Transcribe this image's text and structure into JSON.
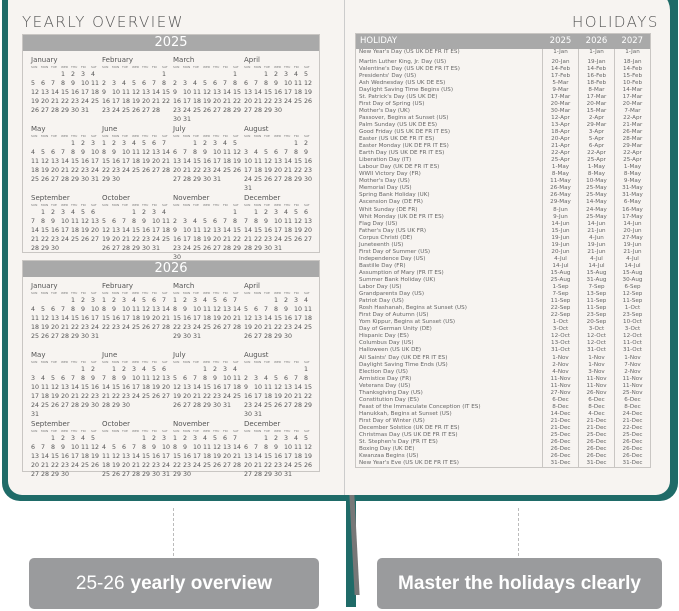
{
  "colors": {
    "cover": "#1f6b68",
    "bar": "#a9a9a9",
    "caption_bg": "#9a9b9d"
  },
  "left_page": {
    "title": "YEARLY OVERVIEW",
    "weekdays": [
      "SUN",
      "MON",
      "TUE",
      "WED",
      "THU",
      "FRI",
      "SAT"
    ],
    "months": [
      "January",
      "February",
      "March",
      "April",
      "May",
      "June",
      "July",
      "August",
      "September",
      "October",
      "November",
      "December"
    ],
    "years": [
      "2025",
      "2026"
    ]
  },
  "right_page": {
    "title": "HOLIDAYS",
    "headers": [
      "HOLIDAY",
      "2025",
      "2026",
      "2027"
    ],
    "rows": [
      [
        "New Year's Day (US UK DE FR IT ES)",
        "1-Jan",
        "1-Jan",
        "1-Jan"
      ],
      [
        "Martin Luther King, Jr. Day (US)",
        "20-Jan",
        "19-Jan",
        "18-Jan"
      ],
      [
        "Valentine's Day (US UK DE FR IT ES)",
        "14-Feb",
        "14-Feb",
        "14-Feb"
      ],
      [
        "Presidents' Day (US)",
        "17-Feb",
        "16-Feb",
        "15-Feb"
      ],
      [
        "Ash Wednesday (US UK DE ES)",
        "5-Mar",
        "18-Feb",
        "10-Feb"
      ],
      [
        "Daylight Saving Time Begins (US)",
        "9-Mar",
        "8-Mar",
        "14-Mar"
      ],
      [
        "St. Patrick's Day (US UK DE)",
        "17-Mar",
        "17-Mar",
        "17-Mar"
      ],
      [
        "First Day of Spring (US)",
        "20-Mar",
        "20-Mar",
        "20-Mar"
      ],
      [
        "Mother's Day (UK)",
        "30-Mar",
        "15-Mar",
        "7-Mar"
      ],
      [
        "Passover, Begins at Sunset (US)",
        "12-Apr",
        "2-Apr",
        "22-Apr"
      ],
      [
        "Palm Sunday (US UK DE ES)",
        "13-Apr",
        "29-Mar",
        "21-Mar"
      ],
      [
        "Good Friday (US UK DE FR IT ES)",
        "18-Apr",
        "3-Apr",
        "26-Mar"
      ],
      [
        "Easter (US UK DE FR IT ES)",
        "20-Apr",
        "5-Apr",
        "28-Mar"
      ],
      [
        "Easter Monday (UK DE FR IT ES)",
        "21-Apr",
        "6-Apr",
        "29-Mar"
      ],
      [
        "Earth Day (US UK DE FR IT ES)",
        "22-Apr",
        "22-Apr",
        "22-Apr"
      ],
      [
        "Liberation Day (IT)",
        "25-Apr",
        "25-Apr",
        "25-Apr"
      ],
      [
        "Labour Day (UK DE FR IT ES)",
        "1-May",
        "1-May",
        "1-May"
      ],
      [
        "WWII Victory Day (FR)",
        "8-May",
        "8-May",
        "8-May"
      ],
      [
        "Mother's Day (US)",
        "11-May",
        "10-May",
        "9-May"
      ],
      [
        "Memorial Day (US)",
        "26-May",
        "25-May",
        "31-May"
      ],
      [
        "Spring Bank Holiday (UK)",
        "26-May",
        "25-May",
        "31-May"
      ],
      [
        "Ascension Day (DE FR)",
        "29-May",
        "14-May",
        "6-May"
      ],
      [
        "Whit Sunday (DE FR)",
        "8-Jun",
        "24-May",
        "16-May"
      ],
      [
        "Whit Monday (UK DE FR IT ES)",
        "9-Jun",
        "25-May",
        "17-May"
      ],
      [
        "Flag Day (US)",
        "14-Jun",
        "14-Jun",
        "14-Jun"
      ],
      [
        "Father's Day (US UK FR)",
        "15-Jun",
        "21-Jun",
        "20-Jun"
      ],
      [
        "Corpus Christi (DE)",
        "19-Jun",
        "4-Jun",
        "27-May"
      ],
      [
        "Juneteenth (US)",
        "19-Jun",
        "19-Jun",
        "19-Jun"
      ],
      [
        "First Day of Summer (US)",
        "20-Jun",
        "21-Jun",
        "21-Jun"
      ],
      [
        "Independence Day (US)",
        "4-Jul",
        "4-Jul",
        "4-Jul"
      ],
      [
        "Bastille Day (FR)",
        "14-Jul",
        "14-Jul",
        "14-Jul"
      ],
      [
        "Assumption of Mary (FR IT ES)",
        "15-Aug",
        "15-Aug",
        "15-Aug"
      ],
      [
        "Summer Bank Holiday (UK)",
        "25-Aug",
        "31-Aug",
        "30-Aug"
      ],
      [
        "Labor Day (US)",
        "1-Sep",
        "7-Sep",
        "6-Sep"
      ],
      [
        "Grandparents Day (US)",
        "7-Sep",
        "13-Sep",
        "12-Sep"
      ],
      [
        "Patriot Day (US)",
        "11-Sep",
        "11-Sep",
        "11-Sep"
      ],
      [
        "Rosh Hashanah, Begins at Sunset (US)",
        "22-Sep",
        "11-Sep",
        "1-Oct"
      ],
      [
        "First Day of Autumn (US)",
        "22-Sep",
        "23-Sep",
        "23-Sep"
      ],
      [
        "Yom Kippur, Begins at Sunset (US)",
        "1-Oct",
        "20-Sep",
        "10-Oct"
      ],
      [
        "Day of German Unity (DE)",
        "3-Oct",
        "3-Oct",
        "3-Oct"
      ],
      [
        "Hispanic Day (ES)",
        "12-Oct",
        "12-Oct",
        "12-Oct"
      ],
      [
        "Columbus Day (US)",
        "13-Oct",
        "12-Oct",
        "11-Oct"
      ],
      [
        "Halloween (US UK DE)",
        "31-Oct",
        "31-Oct",
        "31-Oct"
      ],
      [
        "All Saints' Day (UK DE FR IT ES)",
        "1-Nov",
        "1-Nov",
        "1-Nov"
      ],
      [
        "Daylight Saving Time Ends (US)",
        "2-Nov",
        "1-Nov",
        "7-Nov"
      ],
      [
        "Election Day (US)",
        "4-Nov",
        "3-Nov",
        "2-Nov"
      ],
      [
        "Armistice Day (FR)",
        "11-Nov",
        "11-Nov",
        "11-Nov"
      ],
      [
        "Veterans Day (US)",
        "11-Nov",
        "11-Nov",
        "11-Nov"
      ],
      [
        "Thanksgiving Day (US)",
        "27-Nov",
        "26-Nov",
        "25-Nov"
      ],
      [
        "Constitution Day (ES)",
        "6-Dec",
        "6-Dec",
        "6-Dec"
      ],
      [
        "Feast of the Immaculate Conception (IT ES)",
        "8-Dec",
        "8-Dec",
        "8-Dec"
      ],
      [
        "Hanukkah, Begins at Sunset (US)",
        "14-Dec",
        "4-Dec",
        "24-Dec"
      ],
      [
        "First Day of Winter (US)",
        "21-Dec",
        "21-Dec",
        "21-Dec"
      ],
      [
        "December Solstice (UK DE FR IT ES)",
        "21-Dec",
        "21-Dec",
        "22-Dec"
      ],
      [
        "Christmas Day (US UK DE FR IT ES)",
        "25-Dec",
        "25-Dec",
        "25-Dec"
      ],
      [
        "St. Stephen's Day (FR IT ES)",
        "26-Dec",
        "26-Dec",
        "26-Dec"
      ],
      [
        "Boxing Day (UK DE)",
        "26-Dec",
        "26-Dec",
        "26-Dec"
      ],
      [
        "Kwanzaa Begins (US)",
        "26-Dec",
        "26-Dec",
        "26-Dec"
      ],
      [
        "New Year's Eve (US UK DE FR IT ES)",
        "31-Dec",
        "31-Dec",
        "31-Dec"
      ]
    ]
  },
  "captions": {
    "left_number": "25-26",
    "left_text": "yearly overview",
    "right_text": "Master the holidays clearly"
  }
}
